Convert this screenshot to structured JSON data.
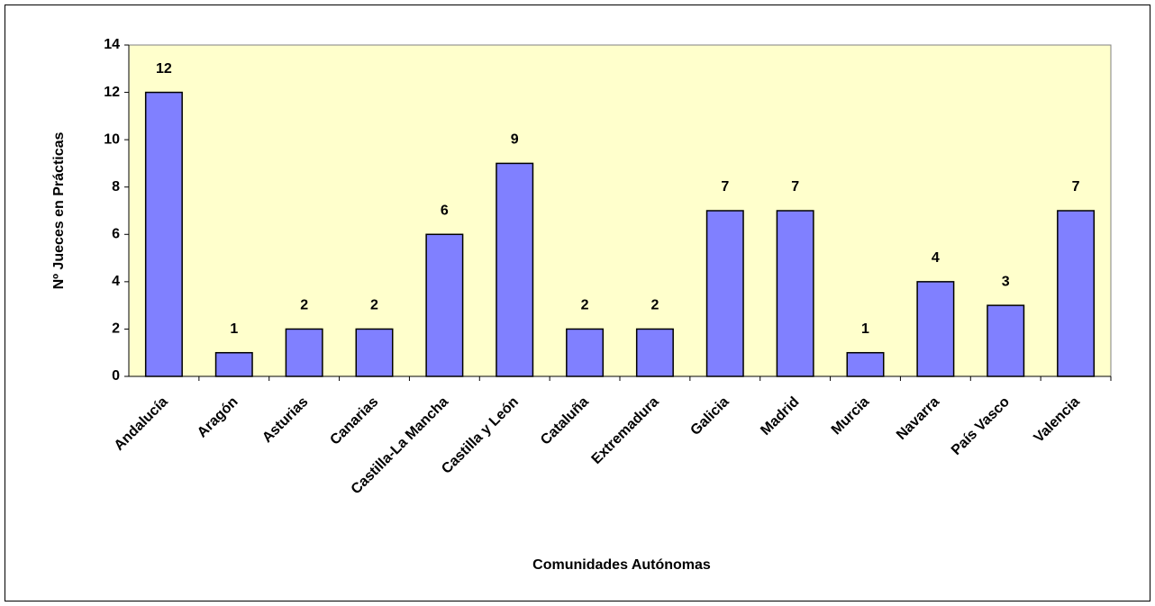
{
  "chart_data": {
    "type": "bar",
    "xlabel": "Comunidades Autónomas",
    "ylabel": "Nº Jueces en Prácticas",
    "categories": [
      "Andalucía",
      "Aragón",
      "Asturias",
      "Canarias",
      "Castilla-La Mancha",
      "Castilla y León",
      "Cataluña",
      "Extremadura",
      "Galicia",
      "Madrid",
      "Murcia",
      "Navarra",
      "País Vasco",
      "Valencia"
    ],
    "values": [
      12,
      1,
      2,
      2,
      6,
      9,
      2,
      2,
      7,
      7,
      1,
      4,
      3,
      7
    ],
    "color": "#8080ff",
    "plot_background": "#ffffcc",
    "ylim": [
      0,
      14
    ],
    "yticks": [
      0,
      2,
      4,
      6,
      8,
      10,
      12,
      14
    ],
    "grid": false
  }
}
